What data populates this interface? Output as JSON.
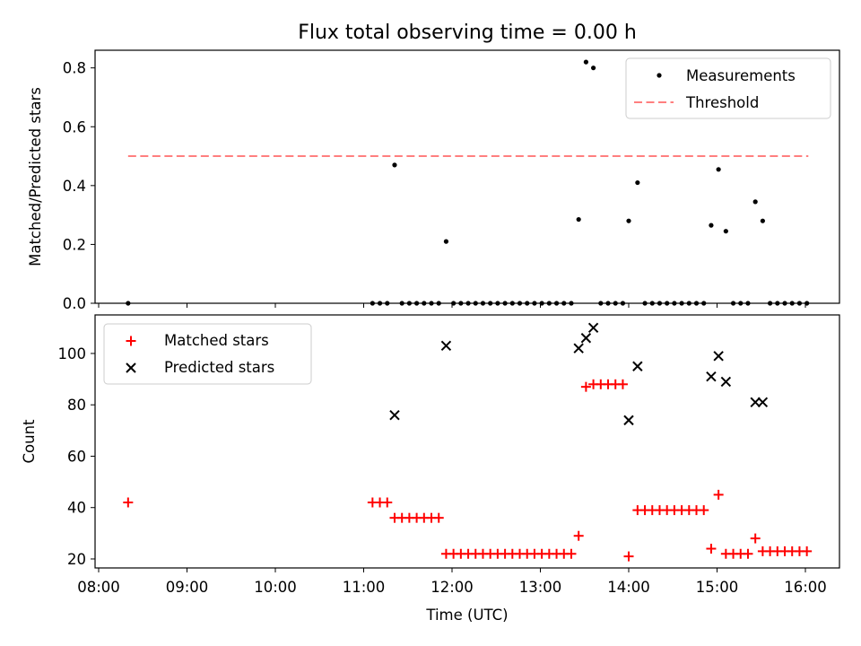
{
  "chart_data": [
    {
      "type": "scatter",
      "title": "Flux total observing time = 0.00 h",
      "xlabel": "",
      "ylabel": "Matched/Predicted stars",
      "ylim": [
        0,
        0.86
      ],
      "yticks": [
        "0.0",
        "0.2",
        "0.4",
        "0.6",
        "0.8"
      ],
      "legend_position": "top-right",
      "threshold": {
        "name": "Threshold",
        "value": 0.5,
        "x_start": "08:20",
        "x_end": "16:02",
        "color": "#ff7f7f"
      },
      "series": [
        {
          "name": "Measurements",
          "color": "#000000",
          "points": [
            [
              "08:20",
              0
            ],
            [
              "11:06",
              0
            ],
            [
              "11:11",
              0
            ],
            [
              "11:16",
              0
            ],
            [
              "11:21",
              0.47
            ],
            [
              "11:26",
              0
            ],
            [
              "11:31",
              0
            ],
            [
              "11:36",
              0
            ],
            [
              "11:41",
              0
            ],
            [
              "11:46",
              0
            ],
            [
              "11:51",
              0
            ],
            [
              "11:56",
              0.21
            ],
            [
              "12:01",
              0
            ],
            [
              "12:06",
              0
            ],
            [
              "12:11",
              0
            ],
            [
              "12:16",
              0
            ],
            [
              "12:21",
              0
            ],
            [
              "12:26",
              0
            ],
            [
              "12:31",
              0
            ],
            [
              "12:36",
              0
            ],
            [
              "12:41",
              0
            ],
            [
              "12:46",
              0
            ],
            [
              "12:51",
              0
            ],
            [
              "12:56",
              0
            ],
            [
              "13:01",
              0
            ],
            [
              "13:06",
              0
            ],
            [
              "13:11",
              0
            ],
            [
              "13:16",
              0
            ],
            [
              "13:21",
              0
            ],
            [
              "13:26",
              0.285
            ],
            [
              "13:31",
              0.82
            ],
            [
              "13:36",
              0.8
            ],
            [
              "13:41",
              0
            ],
            [
              "13:46",
              0
            ],
            [
              "13:51",
              0
            ],
            [
              "13:56",
              0
            ],
            [
              "14:00",
              0.28
            ],
            [
              "14:06",
              0.41
            ],
            [
              "14:11",
              0
            ],
            [
              "14:16",
              0
            ],
            [
              "14:21",
              0
            ],
            [
              "14:26",
              0
            ],
            [
              "14:31",
              0
            ],
            [
              "14:36",
              0
            ],
            [
              "14:41",
              0
            ],
            [
              "14:46",
              0
            ],
            [
              "14:51",
              0
            ],
            [
              "14:56",
              0.265
            ],
            [
              "15:01",
              0.455
            ],
            [
              "15:06",
              0.245
            ],
            [
              "15:11",
              0
            ],
            [
              "15:16",
              0
            ],
            [
              "15:21",
              0
            ],
            [
              "15:26",
              0.345
            ],
            [
              "15:31",
              0.28
            ],
            [
              "15:36",
              0
            ],
            [
              "15:41",
              0
            ],
            [
              "15:46",
              0
            ],
            [
              "15:51",
              0
            ],
            [
              "15:56",
              0
            ],
            [
              "16:01",
              0
            ]
          ]
        }
      ]
    },
    {
      "type": "scatter",
      "title": "",
      "xlabel": "Time (UTC)",
      "ylabel": "Count",
      "ylim": [
        16.5,
        115
      ],
      "yticks": [
        "20",
        "40",
        "60",
        "80",
        "100"
      ],
      "xticks": [
        "08:00",
        "09:00",
        "10:00",
        "11:00",
        "12:00",
        "13:00",
        "14:00",
        "15:00",
        "16:00"
      ],
      "legend_position": "top-left",
      "series": [
        {
          "name": "Matched stars",
          "color": "#ff0000",
          "marker": "plus",
          "points": [
            [
              "08:20",
              42
            ],
            [
              "11:06",
              42
            ],
            [
              "11:11",
              42
            ],
            [
              "11:16",
              42
            ],
            [
              "11:21",
              36
            ],
            [
              "11:26",
              36
            ],
            [
              "11:31",
              36
            ],
            [
              "11:36",
              36
            ],
            [
              "11:41",
              36
            ],
            [
              "11:46",
              36
            ],
            [
              "11:51",
              36
            ],
            [
              "11:56",
              22
            ],
            [
              "12:01",
              22
            ],
            [
              "12:06",
              22
            ],
            [
              "12:11",
              22
            ],
            [
              "12:16",
              22
            ],
            [
              "12:21",
              22
            ],
            [
              "12:26",
              22
            ],
            [
              "12:31",
              22
            ],
            [
              "12:36",
              22
            ],
            [
              "12:41",
              22
            ],
            [
              "12:46",
              22
            ],
            [
              "12:51",
              22
            ],
            [
              "12:56",
              22
            ],
            [
              "13:01",
              22
            ],
            [
              "13:06",
              22
            ],
            [
              "13:11",
              22
            ],
            [
              "13:16",
              22
            ],
            [
              "13:21",
              22
            ],
            [
              "13:26",
              29
            ],
            [
              "13:31",
              87
            ],
            [
              "13:36",
              88
            ],
            [
              "13:41",
              88
            ],
            [
              "13:46",
              88
            ],
            [
              "13:51",
              88
            ],
            [
              "13:56",
              88
            ],
            [
              "14:00",
              21
            ],
            [
              "14:06",
              39
            ],
            [
              "14:11",
              39
            ],
            [
              "14:16",
              39
            ],
            [
              "14:21",
              39
            ],
            [
              "14:26",
              39
            ],
            [
              "14:31",
              39
            ],
            [
              "14:36",
              39
            ],
            [
              "14:41",
              39
            ],
            [
              "14:46",
              39
            ],
            [
              "14:51",
              39
            ],
            [
              "14:56",
              24
            ],
            [
              "15:01",
              45
            ],
            [
              "15:06",
              22
            ],
            [
              "15:11",
              22
            ],
            [
              "15:16",
              22
            ],
            [
              "15:21",
              22
            ],
            [
              "15:26",
              28
            ],
            [
              "15:31",
              23
            ],
            [
              "15:36",
              23
            ],
            [
              "15:41",
              23
            ],
            [
              "15:46",
              23
            ],
            [
              "15:51",
              23
            ],
            [
              "15:56",
              23
            ],
            [
              "16:01",
              23
            ]
          ]
        },
        {
          "name": "Predicted stars",
          "color": "#000000",
          "marker": "x",
          "points": [
            [
              "11:21",
              76
            ],
            [
              "11:56",
              103
            ],
            [
              "13:26",
              102
            ],
            [
              "13:31",
              106
            ],
            [
              "13:36",
              110
            ],
            [
              "14:00",
              74
            ],
            [
              "14:06",
              95
            ],
            [
              "14:56",
              91
            ],
            [
              "15:01",
              99
            ],
            [
              "15:06",
              89
            ],
            [
              "15:26",
              81
            ],
            [
              "15:31",
              81
            ]
          ]
        }
      ]
    }
  ]
}
